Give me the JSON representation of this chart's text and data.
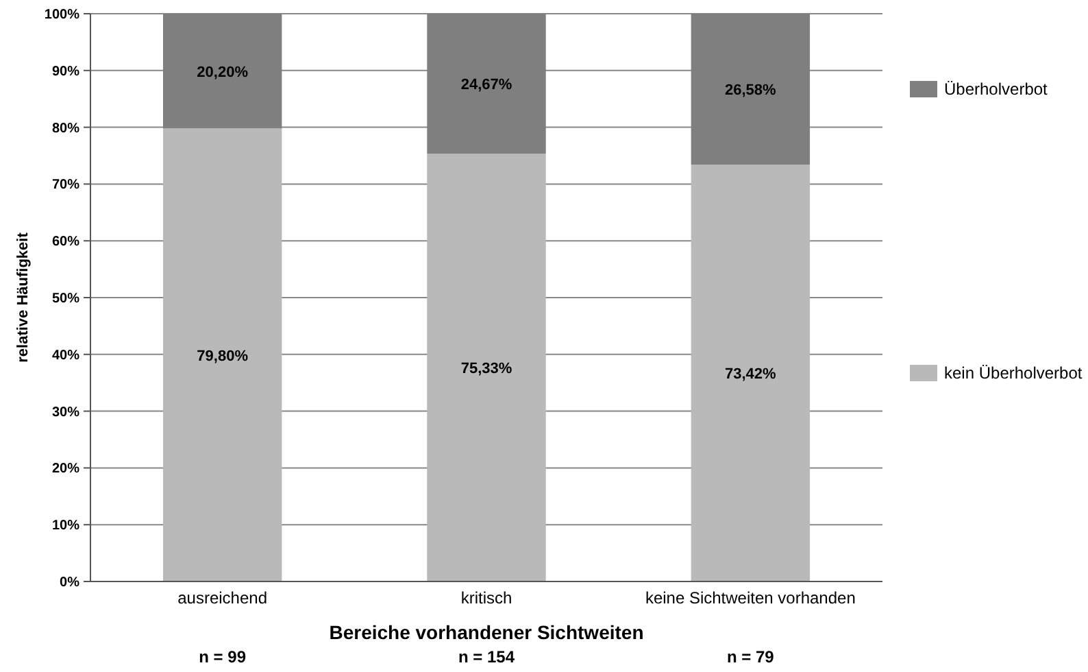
{
  "chart_data": {
    "type": "bar",
    "stacked": true,
    "xlabel": "Bereiche vorhandener Sichtweiten",
    "ylabel": "relative Häufigkeit",
    "categories": [
      "ausreichend",
      "kritisch",
      "keine Sichtweiten vorhanden"
    ],
    "series": [
      {
        "name": "kein Überholverbot",
        "color": "#b9b9b9",
        "values": [
          79.8,
          75.33,
          73.42
        ],
        "value_labels": [
          "79,80%",
          "75,33%",
          "73,42%"
        ]
      },
      {
        "name": "Überholverbot",
        "color": "#7f7f7f",
        "values": [
          20.2,
          24.67,
          26.58
        ],
        "value_labels": [
          "20,20%",
          "24,67%",
          "26,58%"
        ]
      }
    ],
    "ylim": [
      0,
      100
    ],
    "yticks": [
      {
        "value": 0,
        "label": "0%"
      },
      {
        "value": 10,
        "label": "10%"
      },
      {
        "value": 20,
        "label": "20%"
      },
      {
        "value": 30,
        "label": "30%"
      },
      {
        "value": 40,
        "label": "40%"
      },
      {
        "value": 50,
        "label": "50%"
      },
      {
        "value": 60,
        "label": "60%"
      },
      {
        "value": 70,
        "label": "70%"
      },
      {
        "value": 80,
        "label": "80%"
      },
      {
        "value": 90,
        "label": "90%"
      },
      {
        "value": 100,
        "label": "100%"
      }
    ],
    "grid": "y",
    "legend": "right",
    "annotations": [
      "n = 99",
      "n = 154",
      "n = 79"
    ]
  }
}
